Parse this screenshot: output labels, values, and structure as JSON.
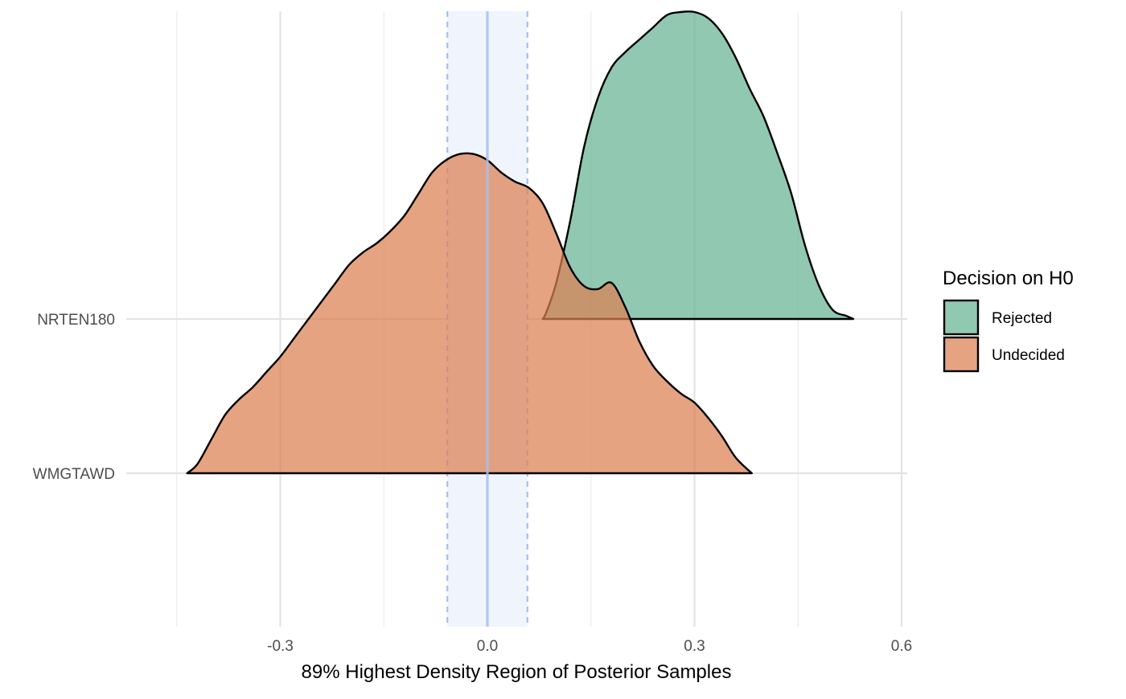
{
  "chart_data": {
    "type": "area",
    "subtype": "ridgeline-density",
    "title": "",
    "xlabel": "89% Highest Density Region of Posterior Samples",
    "ylabel": "",
    "xlim": [
      -0.5,
      0.6
    ],
    "x_ticks": [
      -0.3,
      0.0,
      0.3,
      0.6
    ],
    "x_tick_labels": [
      "-0.3",
      "0.0",
      "0.3",
      "0.6"
    ],
    "x_minor_ticks": [
      -0.45,
      -0.15,
      0.15,
      0.45
    ],
    "categories": [
      "WMGTAWD",
      "NRTEN180"
    ],
    "grid": true,
    "rope": {
      "center": 0.0,
      "range": [
        -0.058,
        0.058
      ],
      "fill_color": "#eef3fc",
      "line_color": "#a7c0ec"
    },
    "legend": {
      "title": "Decision on H0",
      "position": "right",
      "entries": [
        {
          "label": "Rejected",
          "color": "#66b394"
        },
        {
          "label": "Undecided",
          "color": "#db8052"
        }
      ]
    },
    "series": [
      {
        "category": "NRTEN180",
        "decision": "Rejected",
        "color": "#66b394",
        "x": [
          0.08,
          0.085,
          0.1,
          0.12,
          0.14,
          0.16,
          0.18,
          0.2,
          0.22,
          0.24,
          0.26,
          0.28,
          0.3,
          0.32,
          0.34,
          0.36,
          0.38,
          0.4,
          0.42,
          0.44,
          0.46,
          0.48,
          0.5,
          0.52,
          0.53
        ],
        "y": [
          0.0,
          0.02,
          0.12,
          0.32,
          0.56,
          0.72,
          0.82,
          0.87,
          0.91,
          0.95,
          0.99,
          1.0,
          1.0,
          0.98,
          0.93,
          0.85,
          0.75,
          0.66,
          0.54,
          0.41,
          0.24,
          0.11,
          0.03,
          0.01,
          0.0
        ]
      },
      {
        "category": "WMGTAWD",
        "decision": "Undecided",
        "color": "#db8052",
        "x": [
          -0.435,
          -0.42,
          -0.4,
          -0.38,
          -0.36,
          -0.34,
          -0.32,
          -0.3,
          -0.28,
          -0.26,
          -0.24,
          -0.22,
          -0.2,
          -0.18,
          -0.16,
          -0.14,
          -0.12,
          -0.1,
          -0.08,
          -0.06,
          -0.04,
          -0.02,
          0.0,
          0.02,
          0.04,
          0.06,
          0.08,
          0.1,
          0.12,
          0.14,
          0.16,
          0.18,
          0.2,
          0.22,
          0.24,
          0.26,
          0.28,
          0.3,
          0.32,
          0.34,
          0.36,
          0.383
        ],
        "y": [
          0.0,
          0.03,
          0.11,
          0.19,
          0.24,
          0.28,
          0.33,
          0.38,
          0.44,
          0.5,
          0.56,
          0.62,
          0.68,
          0.72,
          0.75,
          0.79,
          0.84,
          0.91,
          0.98,
          1.02,
          1.04,
          1.04,
          1.02,
          0.98,
          0.95,
          0.93,
          0.88,
          0.78,
          0.67,
          0.61,
          0.6,
          0.62,
          0.54,
          0.43,
          0.35,
          0.3,
          0.26,
          0.23,
          0.18,
          0.12,
          0.05,
          0.0
        ]
      }
    ]
  }
}
